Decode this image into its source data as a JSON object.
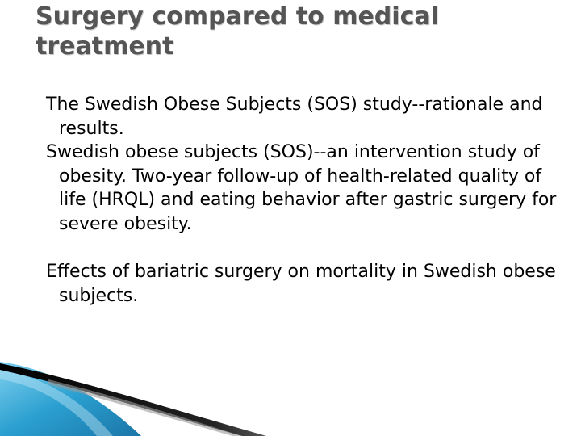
{
  "slide": {
    "title": "Surgery compared to medical treatment",
    "paragraphs": [
      "The Swedish Obese Subjects (SOS) study--rationale and results.",
      "Swedish obese subjects (SOS)--an intervention study of obesity. Two-year follow-up of health-related quality of life (HRQL) and eating behavior after gastric surgery for severe obesity.",
      "Effects of bariatric surgery on mortality in Swedish obese subjects."
    ]
  },
  "colors": {
    "title": "#555555",
    "text": "#000000",
    "accent_blue": "#2a9fd0",
    "accent_dark": "#111111"
  }
}
